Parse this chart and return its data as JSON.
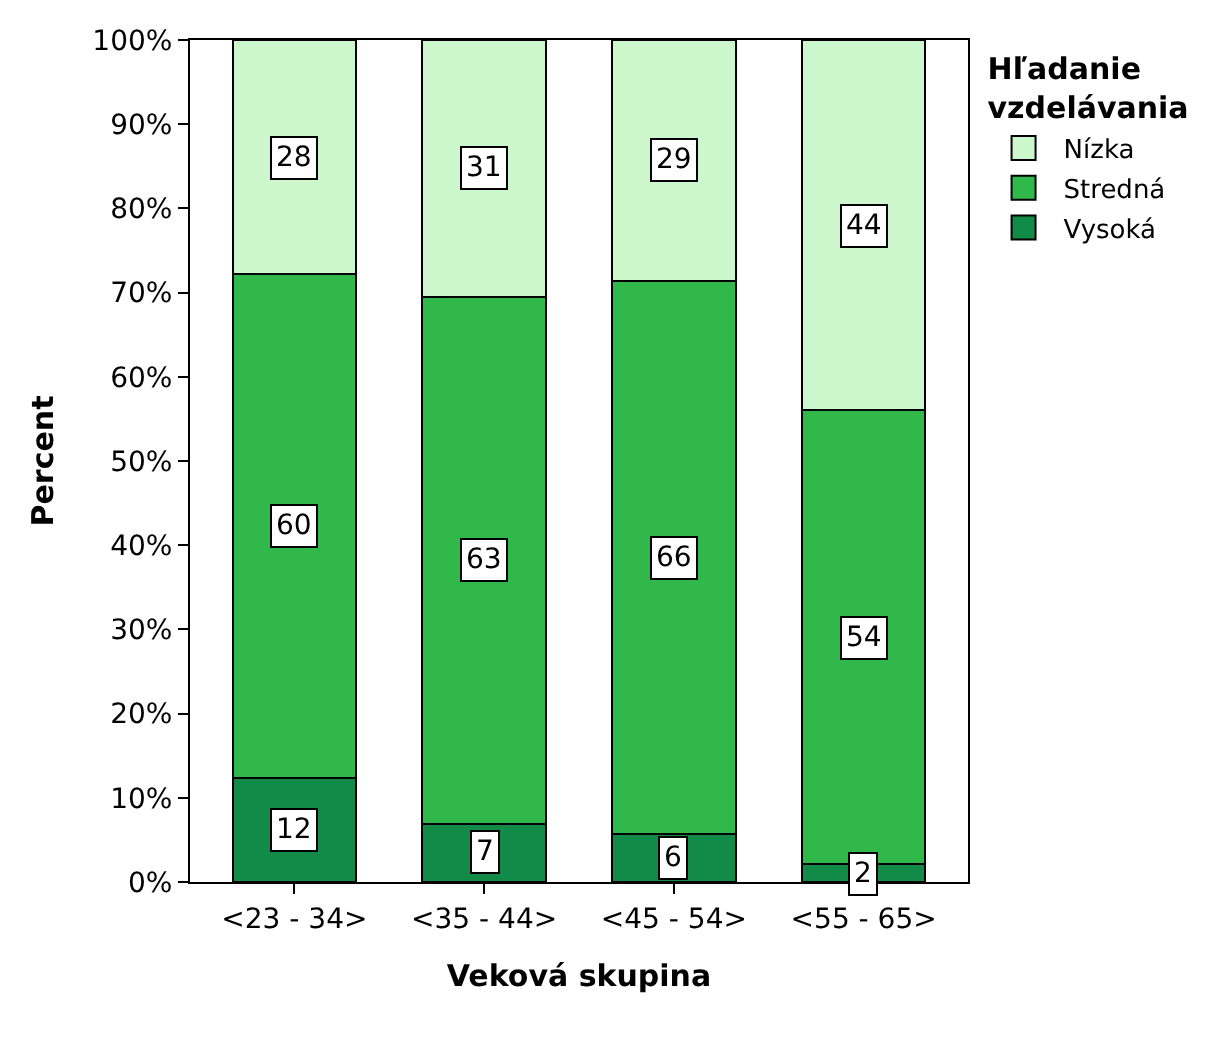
{
  "chart_data": {
    "type": "bar",
    "stacked": true,
    "xlabel": "Veková skupina",
    "ylabel": "Percent",
    "legend_title": "Hľadanie vzdelávania",
    "legend": "top right",
    "categories": [
      "<23 - 34>",
      "<35 - 44>",
      "<45 - 54>",
      "<55 - 65>"
    ],
    "series": [
      {
        "name": "Vysoká",
        "color": "#128a48",
        "values": [
          12.4,
          6.9,
          5.7,
          2.1
        ],
        "value_labels": [
          "12",
          "7",
          "6",
          "2"
        ]
      },
      {
        "name": "Stredná",
        "color": "#30b84b",
        "values": [
          59.8,
          62.6,
          65.7,
          53.9
        ],
        "value_labels": [
          "60",
          "63",
          "66",
          "54"
        ]
      },
      {
        "name": "Nízka",
        "color": "#ccf7cc",
        "values": [
          27.8,
          30.5,
          28.6,
          44.0
        ],
        "value_labels": [
          "28",
          "31",
          "29",
          "44"
        ]
      }
    ],
    "ylim": [
      0,
      100
    ],
    "yticks": [
      {
        "value": 0,
        "label": "0%"
      },
      {
        "value": 10,
        "label": "10%"
      },
      {
        "value": 20,
        "label": "20%"
      },
      {
        "value": 30,
        "label": "30%"
      },
      {
        "value": 40,
        "label": "40%"
      },
      {
        "value": 50,
        "label": "50%"
      },
      {
        "value": 60,
        "label": "60%"
      },
      {
        "value": 70,
        "label": "70%"
      },
      {
        "value": 80,
        "label": "80%"
      },
      {
        "value": 90,
        "label": "90%"
      },
      {
        "value": 100,
        "label": "100%"
      }
    ]
  }
}
